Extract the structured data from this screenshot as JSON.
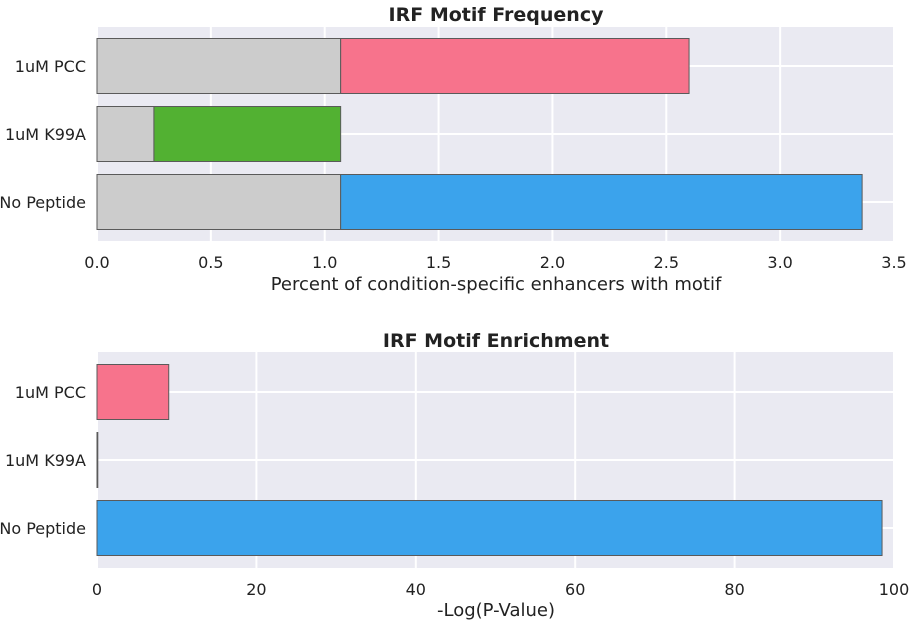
{
  "chart_data": [
    {
      "type": "bar",
      "orientation": "horizontal",
      "stacked": true,
      "title": "IRF Motif Frequency",
      "xlabel": "Percent of condition-specific enhancers with motif",
      "ylabel": "",
      "categories": [
        "1uM PCC",
        "1uM K99A",
        "No Peptide"
      ],
      "xlim": [
        0,
        3.5
      ],
      "xticks": [
        "0.0",
        "0.5",
        "1.0",
        "1.5",
        "2.0",
        "2.5",
        "3.0",
        "3.5"
      ],
      "grid": true,
      "series": [
        {
          "values": [
            1.07,
            0.25,
            1.07
          ],
          "colors": [
            "#cccccc",
            "#cccccc",
            "#cccccc"
          ]
        },
        {
          "values": [
            1.53,
            0.82,
            2.29
          ],
          "colors": [
            "#f7738c",
            "#52b132",
            "#3ba3ec"
          ]
        }
      ]
    },
    {
      "type": "bar",
      "orientation": "horizontal",
      "title": "IRF Motif Enrichment",
      "xlabel": "-Log(P-Value)",
      "ylabel": "",
      "categories": [
        "1uM PCC",
        "1uM K99A",
        "No Peptide"
      ],
      "values": [
        9,
        0,
        98.5
      ],
      "colors": [
        "#f7738c",
        "#52b132",
        "#3ba3ec"
      ],
      "xlim": [
        0,
        100
      ],
      "xticks": [
        "0",
        "20",
        "40",
        "60",
        "80",
        "100"
      ],
      "grid": true
    }
  ]
}
